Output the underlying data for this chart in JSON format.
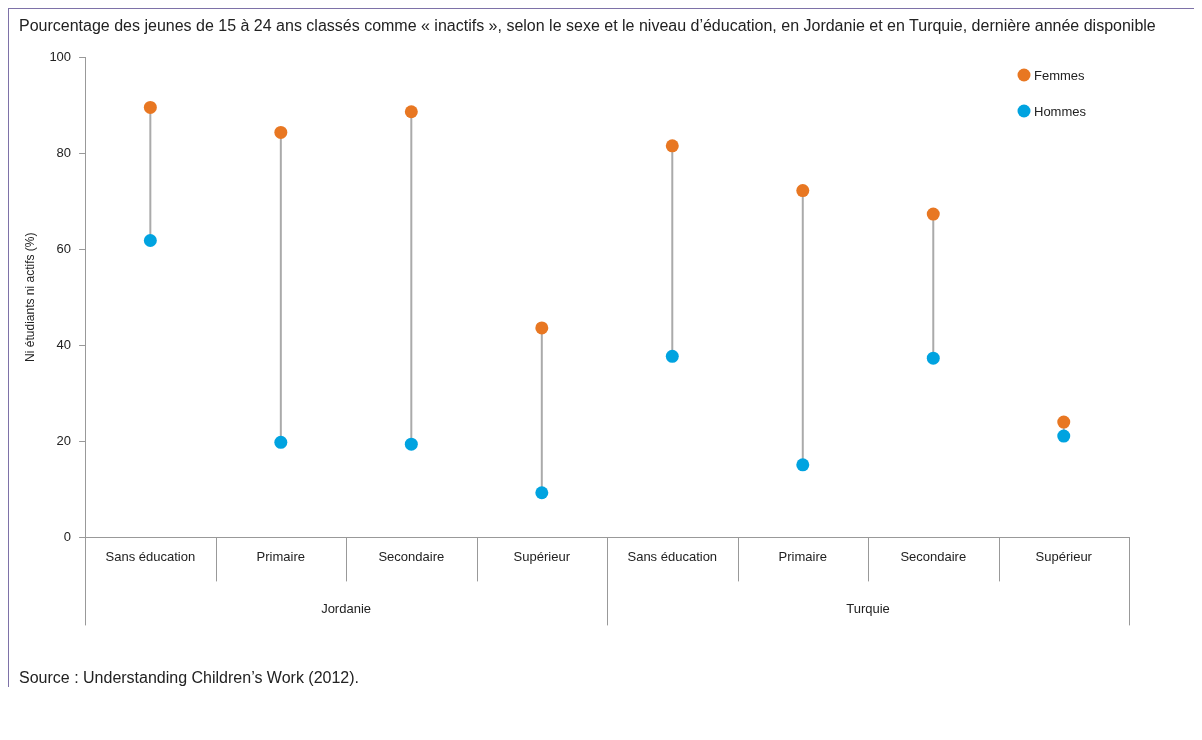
{
  "chart_data": {
    "type": "scatter",
    "title": "Pourcentage des jeunes de 15 à 24 ans classés comme « inactifs », selon le sexe et le niveau d’éducation, en Jordanie et en Turquie, dernière année disponible",
    "ylabel": "Ni étudiants ni actifs (%)",
    "categories": [
      "Sans éducation",
      "Primaire",
      "Secondaire",
      "Supérieur",
      "Sans éducation",
      "Primaire",
      "Secondaire",
      "Supérieur"
    ],
    "series": [
      {
        "name": "Femmes",
        "color": "#e87722",
        "values": [
          89.5,
          84.3,
          88.6,
          43.6,
          81.5,
          72.2,
          67.3,
          24
        ]
      },
      {
        "name": "Hommes",
        "color": "#00a3e0",
        "values": [
          61.8,
          19.8,
          19.4,
          9.3,
          37.7,
          15.1,
          37.3,
          21.1
        ]
      }
    ],
    "ylim": [
      0,
      100
    ],
    "yticks": [
      0,
      20,
      40,
      60,
      80,
      100
    ],
    "grid": false,
    "legend": "top right",
    "marker": "circle",
    "annotations": [
      "Jordanie",
      "Turquie",
      "Source : Understanding Children’s Work (2012)."
    ]
  }
}
